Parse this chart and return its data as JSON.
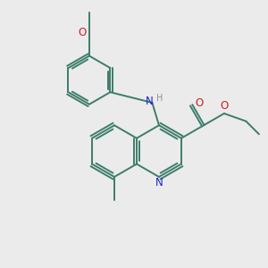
{
  "bg_color": "#ebebeb",
  "bond_color": "#3d7d6b",
  "bond_width": 1.4,
  "N_color": "#2020cc",
  "O_color": "#cc2020",
  "H_color": "#7a9a9a",
  "figsize": [
    3.0,
    3.0
  ],
  "dpi": 100,
  "xlim": [
    0,
    10
  ],
  "ylim": [
    0,
    10
  ]
}
